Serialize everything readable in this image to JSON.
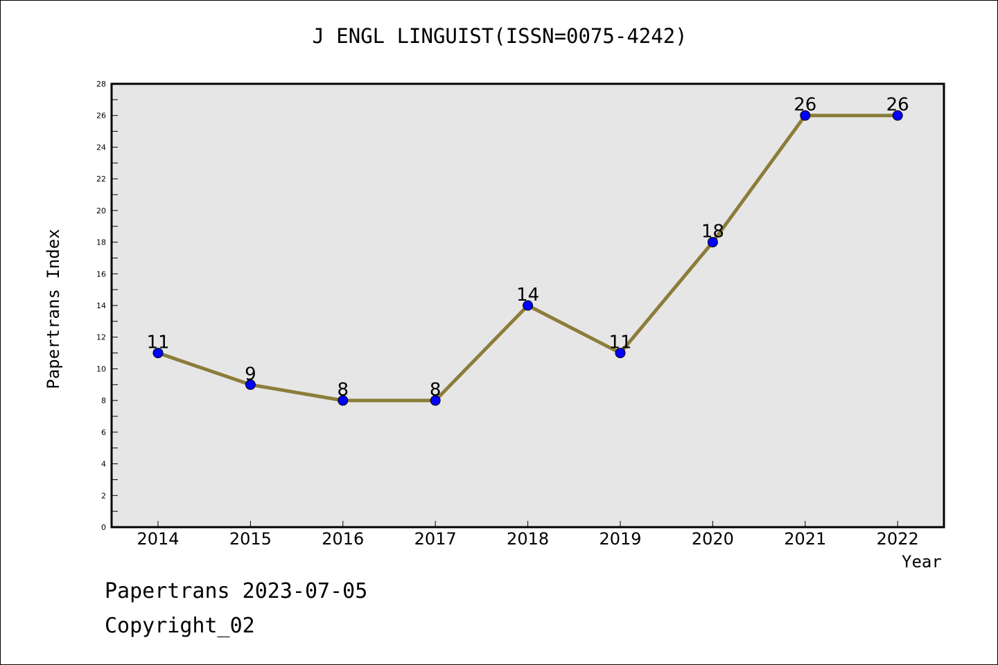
{
  "header": {
    "title": "J ENGL LINGUIST(ISSN=0075-4242)"
  },
  "footer": {
    "line1": "Papertrans 2023-07-05",
    "line2": "Copyright_02"
  },
  "colors": {
    "line": "#8b7d3a",
    "marker": "#0000ff",
    "plot_background": "#e6e6e6"
  },
  "chart_data": {
    "type": "line",
    "title": "J ENGL LINGUIST(ISSN=0075-4242)",
    "xlabel": "Year",
    "ylabel": "Papertrans Index",
    "categories": [
      "2014",
      "2015",
      "2016",
      "2017",
      "2018",
      "2019",
      "2020",
      "2021",
      "2022"
    ],
    "series": [
      {
        "values": [
          11,
          9,
          8,
          8,
          14,
          11,
          18,
          26,
          26
        ]
      }
    ],
    "ylim": [
      0,
      28
    ],
    "yticks": [
      0,
      2,
      4,
      6,
      8,
      10,
      12,
      14,
      16,
      18,
      20,
      22,
      24,
      26,
      28
    ],
    "data_labels": [
      "11",
      "9",
      "8",
      "8",
      "14",
      "11",
      "18",
      "26",
      "26"
    ],
    "grid": false,
    "legend": "none"
  }
}
